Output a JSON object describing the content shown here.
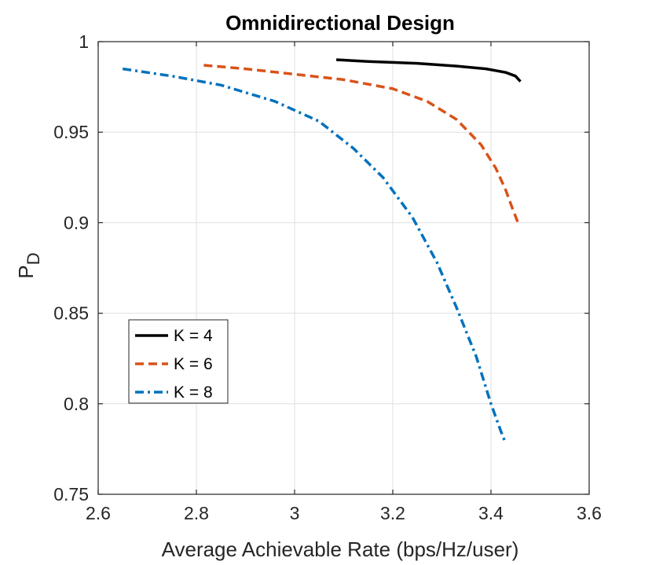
{
  "chart_data": {
    "type": "line",
    "title": "Omnidirectional Design",
    "xlabel": "Average Achievable Rate (bps/Hz/user)",
    "ylabel_main": "P",
    "ylabel_sub": "D",
    "xlim": [
      2.6,
      3.6
    ],
    "ylim": [
      0.75,
      1.0
    ],
    "xticks": [
      2.6,
      2.8,
      3.0,
      3.2,
      3.4,
      3.6
    ],
    "xtick_labels": [
      "2.6",
      "2.8",
      "3",
      "3.2",
      "3.4",
      "3.6"
    ],
    "yticks": [
      0.75,
      0.8,
      0.85,
      0.9,
      0.95,
      1.0
    ],
    "ytick_labels": [
      "0.75",
      "0.8",
      "0.85",
      "0.9",
      "0.95",
      "1"
    ],
    "grid": true,
    "legend_position": "lower-left",
    "series": [
      {
        "name": "K = 4",
        "color": "#000000",
        "style": "solid",
        "x": [
          3.085,
          3.15,
          3.25,
          3.33,
          3.39,
          3.43,
          3.45,
          3.46
        ],
        "y": [
          0.99,
          0.989,
          0.988,
          0.9865,
          0.985,
          0.983,
          0.981,
          0.978
        ]
      },
      {
        "name": "K = 6",
        "color": "#D95319",
        "style": "dashed",
        "x": [
          2.815,
          2.9,
          3.0,
          3.1,
          3.2,
          3.27,
          3.33,
          3.38,
          3.41,
          3.43,
          3.445,
          3.455,
          3.46
        ],
        "y": [
          0.987,
          0.985,
          0.982,
          0.979,
          0.974,
          0.967,
          0.957,
          0.943,
          0.93,
          0.918,
          0.907,
          0.9,
          0.9
        ]
      },
      {
        "name": "K = 8",
        "color": "#0072BD",
        "style": "dashdot",
        "x": [
          2.65,
          2.75,
          2.85,
          2.96,
          3.05,
          3.12,
          3.18,
          3.24,
          3.29,
          3.33,
          3.37,
          3.4,
          3.42,
          3.43
        ],
        "y": [
          0.985,
          0.981,
          0.976,
          0.967,
          0.956,
          0.941,
          0.925,
          0.903,
          0.878,
          0.853,
          0.826,
          0.8,
          0.785,
          0.778
        ]
      }
    ]
  }
}
